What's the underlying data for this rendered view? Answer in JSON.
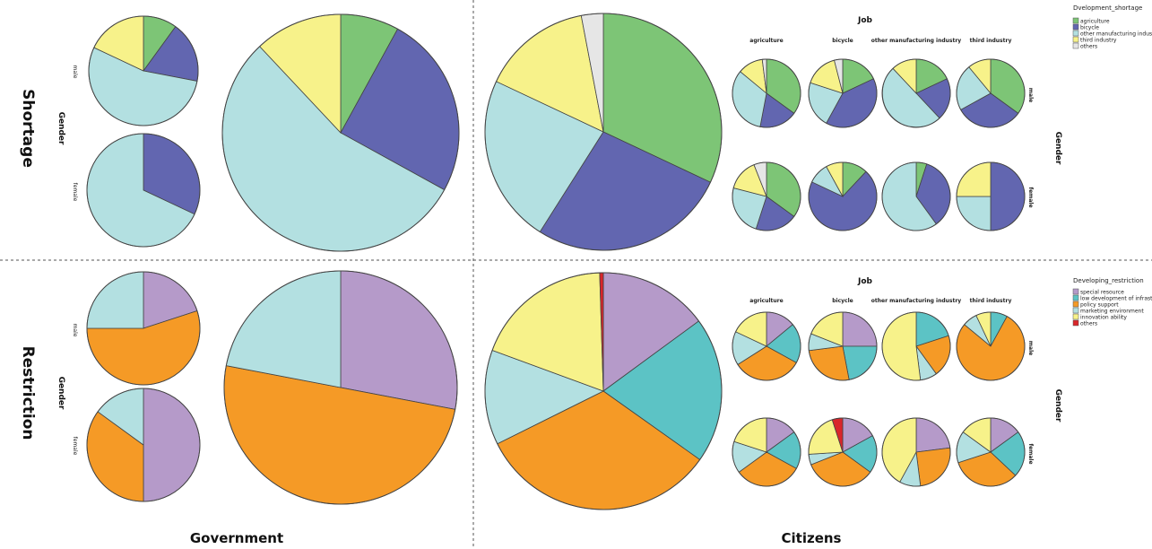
{
  "labels": {
    "row_shortage": "Shortage",
    "row_restriction": "Restriction",
    "col_government": "Government",
    "col_citizens": "Citizens",
    "gender": "Gender",
    "job": "Job",
    "male": "male",
    "female": "female",
    "jobs": [
      "agriculture",
      "bicycle",
      "other manufacturing industry",
      "third industry"
    ]
  },
  "colors": {
    "agriculture": "#7dc576",
    "bicycle": "#6266b0",
    "other_manufacturing": "#b3e0e1",
    "third_industry": "#f7f28a",
    "others": "#e6e6e6",
    "special_resource": "#b59ac9",
    "low_development": "#5cc3c5",
    "policy_support": "#f59a26",
    "marketing_environment": "#b3e0e1",
    "innovation_ability": "#f7f28a",
    "others_restriction": "#d9262a"
  },
  "chart_data": [
    {
      "type": "pie",
      "group": "Shortage",
      "legend_title": "Dvelopment_shortage",
      "legend_position": "top-right",
      "legend": [
        {
          "label": "agriculture",
          "color": "#7dc576"
        },
        {
          "label": "bicycle",
          "color": "#6266b0"
        },
        {
          "label": "other manufacturing industry",
          "color": "#b3e0e1"
        },
        {
          "label": "third industry",
          "color": "#f7f28a"
        },
        {
          "label": "others",
          "color": "#e6e6e6"
        }
      ],
      "categories": [
        "agriculture",
        "bicycle",
        "other manufacturing industry",
        "third industry",
        "others"
      ],
      "government": {
        "total": [
          8,
          25,
          55,
          12,
          0
        ],
        "male": [
          10,
          18,
          54,
          18,
          0
        ],
        "female": [
          0,
          32,
          68,
          0,
          0
        ]
      },
      "citizens": {
        "total": [
          32,
          27,
          23,
          15,
          3
        ],
        "male": {
          "agriculture": [
            35,
            18,
            33,
            12,
            2
          ],
          "bicycle": [
            18,
            40,
            22,
            16,
            4
          ],
          "other manufacturing industry": [
            18,
            20,
            50,
            12,
            0
          ],
          "third industry": [
            35,
            32,
            22,
            11,
            0
          ]
        },
        "female": {
          "agriculture": [
            35,
            20,
            24,
            15,
            6
          ],
          "bicycle": [
            12,
            70,
            10,
            8,
            0
          ],
          "other manufacturing industry": [
            5,
            35,
            60,
            0,
            0
          ],
          "third industry": [
            0,
            50,
            25,
            25,
            0
          ]
        }
      }
    },
    {
      "type": "pie",
      "group": "Restriction",
      "legend_title": "Developing_restriction",
      "legend_position": "top-right",
      "legend": [
        {
          "label": "special resource",
          "color": "#b59ac9"
        },
        {
          "label": "low development of infrastructu",
          "color": "#5cc3c5"
        },
        {
          "label": "policy support",
          "color": "#f59a26"
        },
        {
          "label": "marketing environment",
          "color": "#b3e0e1"
        },
        {
          "label": "innovation ability",
          "color": "#f7f28a"
        },
        {
          "label": "others",
          "color": "#d9262a"
        }
      ],
      "categories": [
        "special resource",
        "low development of infrastructure",
        "policy support",
        "marketing environment",
        "innovation ability",
        "others"
      ],
      "government": {
        "total": [
          28,
          0,
          50,
          22,
          0,
          0
        ],
        "male": [
          20,
          0,
          55,
          25,
          0,
          0
        ],
        "female": [
          50,
          0,
          35,
          15,
          0,
          0
        ]
      },
      "citizens": {
        "total": [
          15,
          20,
          33,
          13,
          19,
          0.5
        ],
        "male": {
          "agriculture": [
            14,
            19,
            33,
            16,
            18,
            0
          ],
          "bicycle": [
            25,
            22,
            26,
            8,
            19,
            0
          ],
          "other manufacturing industry": [
            0,
            20,
            20,
            8,
            52,
            0
          ],
          "third industry": [
            0,
            8,
            78,
            7,
            7,
            0
          ]
        },
        "female": {
          "agriculture": [
            15,
            18,
            32,
            15,
            20,
            0
          ],
          "bicycle": [
            17,
            18,
            34,
            5,
            21,
            5
          ],
          "other manufacturing industry": [
            23,
            0,
            25,
            10,
            42,
            0
          ],
          "third industry": [
            15,
            22,
            33,
            15,
            15,
            0
          ]
        }
      }
    }
  ]
}
